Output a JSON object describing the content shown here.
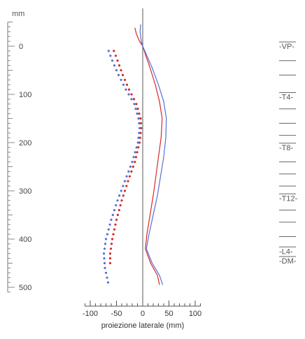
{
  "chart_data": {
    "type": "line",
    "y_unit": "mm",
    "x_label": "proiezione laterale (mm)",
    "ylim": [
      -50,
      510
    ],
    "xlim": [
      -115,
      115
    ],
    "vertical_ticks": [
      {
        "value": 0,
        "label": "0"
      },
      {
        "value": 100,
        "label": "100"
      },
      {
        "value": 200,
        "label": "200"
      },
      {
        "value": 300,
        "label": "300"
      },
      {
        "value": 400,
        "label": "400"
      },
      {
        "value": 500,
        "label": "500"
      }
    ],
    "x_ticks": [
      {
        "value": -100,
        "label": "-100"
      },
      {
        "value": -50,
        "label": "-50"
      },
      {
        "value": 0,
        "label": "0"
      },
      {
        "value": 50,
        "label": "50"
      },
      {
        "value": 100,
        "label": "100"
      }
    ],
    "series": [
      {
        "color": "#d62a2a",
        "style": "solid",
        "points": [
          [
            -15,
            -38
          ],
          [
            -12,
            -25
          ],
          [
            -6,
            -10
          ],
          [
            0,
            0
          ],
          [
            6,
            20
          ],
          [
            14,
            45
          ],
          [
            24,
            80
          ],
          [
            32,
            115
          ],
          [
            37,
            150
          ],
          [
            35,
            190
          ],
          [
            30,
            230
          ],
          [
            25,
            270
          ],
          [
            20,
            310
          ],
          [
            14,
            350
          ],
          [
            8,
            390
          ],
          [
            5,
            420
          ],
          [
            15,
            450
          ],
          [
            28,
            475
          ],
          [
            32,
            495
          ]
        ]
      },
      {
        "color": "#5a6fd6",
        "style": "solid",
        "points": [
          [
            -4,
            -45
          ],
          [
            -5,
            -30
          ],
          [
            -3,
            -10
          ],
          [
            0,
            0
          ],
          [
            8,
            20
          ],
          [
            18,
            45
          ],
          [
            30,
            80
          ],
          [
            40,
            115
          ],
          [
            45,
            150
          ],
          [
            44,
            190
          ],
          [
            40,
            230
          ],
          [
            34,
            270
          ],
          [
            28,
            310
          ],
          [
            20,
            350
          ],
          [
            12,
            390
          ],
          [
            7,
            420
          ],
          [
            18,
            450
          ],
          [
            32,
            475
          ],
          [
            38,
            495
          ]
        ]
      },
      {
        "color": "#d62a2a",
        "style": "dotted",
        "points": [
          [
            -55,
            10
          ],
          [
            -48,
            30
          ],
          [
            -38,
            60
          ],
          [
            -26,
            90
          ],
          [
            -12,
            120
          ],
          [
            -4,
            150
          ],
          [
            -3,
            170
          ],
          [
            -6,
            200
          ],
          [
            -15,
            240
          ],
          [
            -28,
            280
          ],
          [
            -40,
            320
          ],
          [
            -50,
            360
          ],
          [
            -58,
            400
          ],
          [
            -62,
            430
          ],
          [
            -62,
            450
          ]
        ]
      },
      {
        "color": "#5a6fd6",
        "style": "dotted",
        "points": [
          [
            -65,
            10
          ],
          [
            -58,
            30
          ],
          [
            -46,
            60
          ],
          [
            -32,
            90
          ],
          [
            -16,
            120
          ],
          [
            -8,
            150
          ],
          [
            -6,
            170
          ],
          [
            -9,
            200
          ],
          [
            -20,
            240
          ],
          [
            -34,
            280
          ],
          [
            -48,
            320
          ],
          [
            -60,
            360
          ],
          [
            -70,
            400
          ],
          [
            -74,
            430
          ],
          [
            -72,
            460
          ],
          [
            -66,
            490
          ]
        ]
      }
    ],
    "level_labels": [
      {
        "value": 0,
        "label": "-VP-"
      },
      {
        "value": 105,
        "label": "-T4-"
      },
      {
        "value": 210,
        "label": "-T8-"
      },
      {
        "value": 315,
        "label": "-T12-"
      },
      {
        "value": 425,
        "label": "-L4-"
      },
      {
        "value": 445,
        "label": "-DM-"
      }
    ],
    "level_marks": [
      30,
      60,
      130,
      160,
      185,
      240,
      265,
      290,
      340,
      365,
      395
    ]
  }
}
